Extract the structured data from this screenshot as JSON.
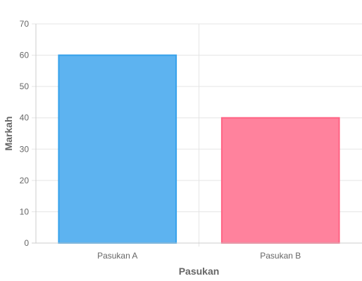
{
  "chart_data": {
    "type": "bar",
    "title": "",
    "xlabel": "Pasukan",
    "ylabel": "Markah",
    "categories": [
      "Pasukan A",
      "Pasukan B"
    ],
    "values": [
      60,
      40
    ],
    "ylim": [
      0,
      70
    ],
    "ytick_step": 10,
    "grid": true,
    "legend": "none",
    "colors": {
      "bar_fills": [
        "#5DB3F0",
        "#FF829D"
      ],
      "bar_borders": [
        "#36A2EB",
        "#FF6384"
      ],
      "grid": "#E5E5E5",
      "axis": "#CCCCCC"
    }
  }
}
